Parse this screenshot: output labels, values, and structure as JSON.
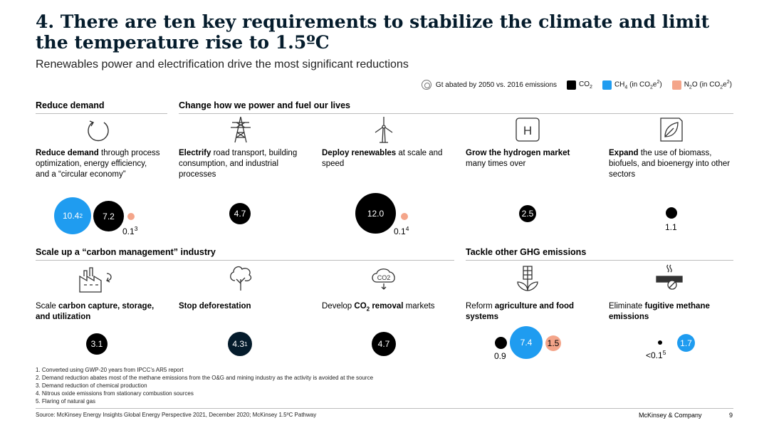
{
  "title": "4. There are ten key requirements to stabilize the climate and limit the temperature rise to 1.5ºC",
  "subtitle": "Renewables power and electrification drive the most significant reductions",
  "legend": {
    "gt_label": "Gt abated by 2050 vs. 2016 emissions",
    "co2_label": "CO",
    "co2_sub": "2",
    "ch4_label": "CH",
    "ch4_sub": "4",
    "ch4_rest": " (in CO",
    "ch4_sub2": "2",
    "ch4_e": "e",
    "ch4_sup": "2",
    "ch4_close": ")",
    "n2o_label": "N",
    "n2o_sub": "2",
    "n2o_rest": "O (in CO",
    "n2o_sub2": "2",
    "n2o_e": "e",
    "n2o_sup": "2",
    "n2o_close": ")",
    "colors": {
      "co2": "#000000",
      "ch4": "#1f9cf0",
      "n2o": "#f4a58a"
    }
  },
  "sections": {
    "reduce_demand": "Reduce demand",
    "change_power": "Change how we power and fuel our lives",
    "carbon_mgmt": "Scale up a “carbon management” industry",
    "other_ghg": "Tackle other GHG emissions"
  },
  "items": {
    "reduce": {
      "bold": "Reduce demand",
      "rest": " through process optimization, energy efficiency, and a “circular economy”",
      "icon": "recycle-icon"
    },
    "electrify": {
      "bold": "Electrify",
      "rest": " road transport, building consumption, and industrial processes",
      "icon": "power-tower-icon"
    },
    "renewables": {
      "bold": "Deploy renewables",
      "rest": " at scale and speed",
      "icon": "wind-turbine-icon"
    },
    "hydrogen": {
      "bold": "Grow the hydrogen market",
      "rest": " many times over",
      "icon": "hydrogen-icon"
    },
    "biomass": {
      "bold": "Expand",
      "rest": " the use of biomass, biofuels, and bioenergy into other sectors",
      "icon": "leaf-icon"
    },
    "ccus": {
      "pre": "Scale ",
      "bold": "carbon capture, storage, and utilization",
      "icon": "factory-icon"
    },
    "deforestation": {
      "bold": "Stop deforestation",
      "icon": "tree-icon"
    },
    "removal": {
      "pre": "Develop ",
      "bold": "CO",
      "bold_sub": "2",
      "bold2": " removal",
      "rest": " markets",
      "icon": "co2-cloud-icon"
    },
    "agriculture": {
      "pre": "Reform ",
      "bold": "agriculture and food systems",
      "icon": "wheat-icon"
    },
    "methane": {
      "pre": "Eliminate ",
      "bold": "fugitive methane emissions",
      "icon": "pipe-leak-icon"
    }
  },
  "values": {
    "reduce_ch4": "10.4",
    "reduce_ch4_sup": "2",
    "reduce_co2": "7.2",
    "reduce_n2o": "0.1",
    "reduce_n2o_sup": "3",
    "electrify_co2": "4.7",
    "renewables_co2": "12.0",
    "renewables_n2o": "0.1",
    "renewables_n2o_sup": "4",
    "hydrogen_co2": "2.5",
    "biomass_co2": "1.1",
    "ccus_co2": "3.1",
    "deforestation_co2": "4.3",
    "deforestation_sup": "1",
    "removal_co2": "4.7",
    "agriculture_co2": "0.9",
    "agriculture_ch4": "7.4",
    "agriculture_n2o": "1.5",
    "methane_co2": "<0.1",
    "methane_co2_sup": "5",
    "methane_ch4": "1.7"
  },
  "footnotes": [
    "1. Converted using GWP-20 years from IPCC’s AR5 report",
    "2. Demand reduction abates most of the methane emissions from the O&G and mining industry as the activity is avoided at the source",
    "3. Demand reduction of chemical production",
    "4. Nitrous oxide emissions from stationary combustion sources",
    "5. Flaring of natural gas"
  ],
  "source": "Source: McKinsey Energy Insights Global Energy Perspective 2021, December 2020; McKinsey 1.5ºC Pathway",
  "brand": "McKinsey & Company",
  "page_number": "9"
}
